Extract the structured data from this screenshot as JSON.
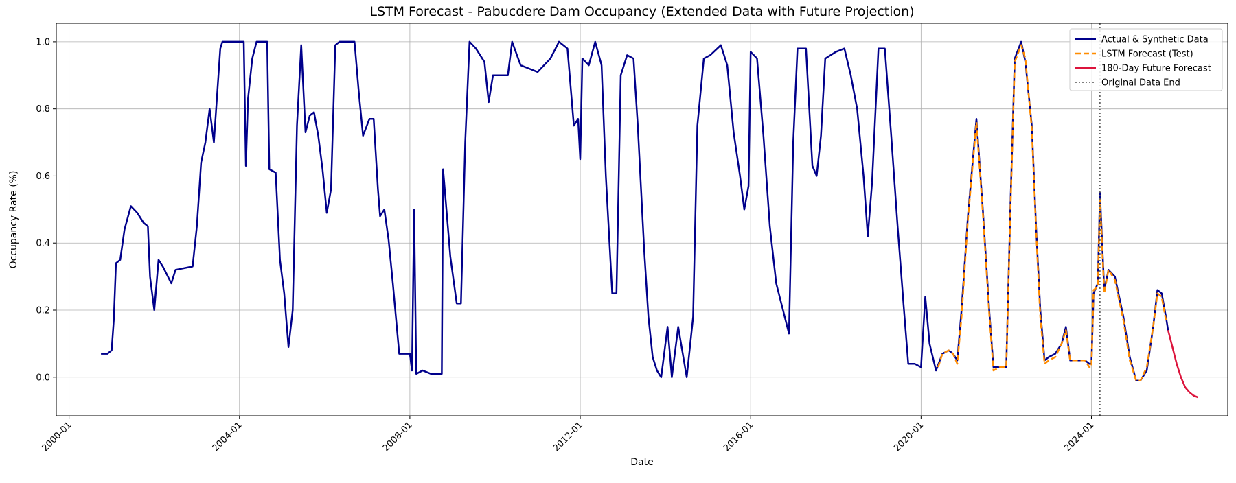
{
  "chart_data": {
    "type": "line",
    "title": "LSTM Forecast - Pabucdere Dam Occupancy (Extended Data with Future Projection)",
    "xlabel": "Date",
    "ylabel": "Occupancy Rate (%)",
    "x_ticks": [
      "2000-01",
      "2004-01",
      "2008-01",
      "2012-01",
      "2016-01",
      "2020-01",
      "2024-01"
    ],
    "y_ticks": [
      "0.0",
      "0.2",
      "0.4",
      "0.6",
      "0.8",
      "1.0"
    ],
    "xlim": [
      1999.7,
      2027.2
    ],
    "ylim": [
      -0.115,
      1.055
    ],
    "grid": true,
    "legend_position": "top-right",
    "series": [
      {
        "name": "Actual & Synthetic Data",
        "color": "#00008b",
        "style": "solid",
        "points": [
          [
            2000.75,
            0.07
          ],
          [
            2000.9,
            0.07
          ],
          [
            2001.0,
            0.08
          ],
          [
            2001.05,
            0.17
          ],
          [
            2001.1,
            0.34
          ],
          [
            2001.2,
            0.35
          ],
          [
            2001.3,
            0.44
          ],
          [
            2001.45,
            0.51
          ],
          [
            2001.6,
            0.49
          ],
          [
            2001.75,
            0.46
          ],
          [
            2001.85,
            0.45
          ],
          [
            2001.9,
            0.3
          ],
          [
            2002.0,
            0.2
          ],
          [
            2002.1,
            0.35
          ],
          [
            2002.2,
            0.33
          ],
          [
            2002.4,
            0.28
          ],
          [
            2002.5,
            0.32
          ],
          [
            2002.9,
            0.33
          ],
          [
            2003.0,
            0.45
          ],
          [
            2003.1,
            0.64
          ],
          [
            2003.2,
            0.7
          ],
          [
            2003.3,
            0.8
          ],
          [
            2003.4,
            0.7
          ],
          [
            2003.55,
            0.98
          ],
          [
            2003.6,
            1.0
          ],
          [
            2004.0,
            1.0
          ],
          [
            2004.1,
            1.0
          ],
          [
            2004.15,
            0.63
          ],
          [
            2004.2,
            0.83
          ],
          [
            2004.3,
            0.95
          ],
          [
            2004.4,
            1.0
          ],
          [
            2004.65,
            1.0
          ],
          [
            2004.7,
            0.62
          ],
          [
            2004.85,
            0.61
          ],
          [
            2004.95,
            0.35
          ],
          [
            2005.05,
            0.25
          ],
          [
            2005.15,
            0.09
          ],
          [
            2005.25,
            0.2
          ],
          [
            2005.35,
            0.75
          ],
          [
            2005.45,
            0.99
          ],
          [
            2005.55,
            0.73
          ],
          [
            2005.65,
            0.78
          ],
          [
            2005.75,
            0.79
          ],
          [
            2005.85,
            0.72
          ],
          [
            2005.95,
            0.62
          ],
          [
            2006.05,
            0.49
          ],
          [
            2006.15,
            0.56
          ],
          [
            2006.25,
            0.99
          ],
          [
            2006.35,
            1.0
          ],
          [
            2006.7,
            1.0
          ],
          [
            2006.8,
            0.85
          ],
          [
            2006.9,
            0.72
          ],
          [
            2007.05,
            0.77
          ],
          [
            2007.15,
            0.77
          ],
          [
            2007.25,
            0.56
          ],
          [
            2007.3,
            0.48
          ],
          [
            2007.4,
            0.5
          ],
          [
            2007.5,
            0.41
          ],
          [
            2007.6,
            0.28
          ],
          [
            2007.75,
            0.07
          ],
          [
            2008.0,
            0.07
          ],
          [
            2008.05,
            0.02
          ],
          [
            2008.1,
            0.5
          ],
          [
            2008.15,
            0.01
          ],
          [
            2008.3,
            0.02
          ],
          [
            2008.5,
            0.01
          ],
          [
            2008.75,
            0.01
          ],
          [
            2008.78,
            0.62
          ],
          [
            2008.95,
            0.36
          ],
          [
            2009.1,
            0.22
          ],
          [
            2009.2,
            0.22
          ],
          [
            2009.3,
            0.7
          ],
          [
            2009.4,
            1.0
          ],
          [
            2009.55,
            0.98
          ],
          [
            2009.75,
            0.94
          ],
          [
            2009.85,
            0.82
          ],
          [
            2009.95,
            0.9
          ],
          [
            2010.3,
            0.9
          ],
          [
            2010.4,
            1.0
          ],
          [
            2010.6,
            0.93
          ],
          [
            2010.8,
            0.92
          ],
          [
            2011.0,
            0.91
          ],
          [
            2011.3,
            0.95
          ],
          [
            2011.5,
            1.0
          ],
          [
            2011.7,
            0.98
          ],
          [
            2011.85,
            0.75
          ],
          [
            2011.95,
            0.77
          ],
          [
            2012.0,
            0.65
          ],
          [
            2012.05,
            0.95
          ],
          [
            2012.2,
            0.93
          ],
          [
            2012.35,
            1.0
          ],
          [
            2012.5,
            0.93
          ],
          [
            2012.6,
            0.6
          ],
          [
            2012.75,
            0.25
          ],
          [
            2012.85,
            0.25
          ],
          [
            2012.95,
            0.9
          ],
          [
            2013.1,
            0.96
          ],
          [
            2013.25,
            0.95
          ],
          [
            2013.35,
            0.75
          ],
          [
            2013.5,
            0.38
          ],
          [
            2013.6,
            0.18
          ],
          [
            2013.7,
            0.06
          ],
          [
            2013.8,
            0.02
          ],
          [
            2013.9,
            0.0
          ],
          [
            2014.05,
            0.15
          ],
          [
            2014.15,
            0.0
          ],
          [
            2014.3,
            0.15
          ],
          [
            2014.5,
            0.0
          ],
          [
            2014.65,
            0.18
          ],
          [
            2014.75,
            0.75
          ],
          [
            2014.9,
            0.95
          ],
          [
            2015.05,
            0.96
          ],
          [
            2015.3,
            0.99
          ],
          [
            2015.45,
            0.93
          ],
          [
            2015.6,
            0.73
          ],
          [
            2015.75,
            0.6
          ],
          [
            2015.85,
            0.5
          ],
          [
            2015.95,
            0.57
          ],
          [
            2016.0,
            0.97
          ],
          [
            2016.15,
            0.95
          ],
          [
            2016.3,
            0.72
          ],
          [
            2016.45,
            0.45
          ],
          [
            2016.6,
            0.28
          ],
          [
            2016.8,
            0.18
          ],
          [
            2016.9,
            0.13
          ],
          [
            2017.0,
            0.7
          ],
          [
            2017.1,
            0.98
          ],
          [
            2017.3,
            0.98
          ],
          [
            2017.45,
            0.63
          ],
          [
            2017.55,
            0.6
          ],
          [
            2017.65,
            0.72
          ],
          [
            2017.75,
            0.95
          ],
          [
            2018.0,
            0.97
          ],
          [
            2018.2,
            0.98
          ],
          [
            2018.35,
            0.9
          ],
          [
            2018.5,
            0.8
          ],
          [
            2018.65,
            0.6
          ],
          [
            2018.75,
            0.42
          ],
          [
            2018.85,
            0.58
          ],
          [
            2019.0,
            0.98
          ],
          [
            2019.15,
            0.98
          ],
          [
            2019.3,
            0.72
          ],
          [
            2019.45,
            0.45
          ],
          [
            2019.6,
            0.2
          ],
          [
            2019.7,
            0.04
          ],
          [
            2019.85,
            0.04
          ],
          [
            2020.0,
            0.03
          ],
          [
            2020.1,
            0.24
          ],
          [
            2020.2,
            0.1
          ],
          [
            2020.35,
            0.02
          ],
          [
            2020.5,
            0.07
          ],
          [
            2020.65,
            0.08
          ],
          [
            2020.75,
            0.07
          ],
          [
            2020.85,
            0.05
          ],
          [
            2020.95,
            0.2
          ],
          [
            2021.1,
            0.48
          ],
          [
            2021.3,
            0.77
          ],
          [
            2021.45,
            0.5
          ],
          [
            2021.6,
            0.2
          ],
          [
            2021.7,
            0.03
          ],
          [
            2021.85,
            0.03
          ],
          [
            2022.0,
            0.03
          ],
          [
            2022.1,
            0.52
          ],
          [
            2022.2,
            0.95
          ],
          [
            2022.35,
            1.0
          ],
          [
            2022.45,
            0.94
          ],
          [
            2022.6,
            0.75
          ],
          [
            2022.7,
            0.45
          ],
          [
            2022.8,
            0.2
          ],
          [
            2022.9,
            0.05
          ],
          [
            2023.0,
            0.06
          ],
          [
            2023.15,
            0.07
          ],
          [
            2023.3,
            0.1
          ],
          [
            2023.4,
            0.15
          ],
          [
            2023.5,
            0.05
          ],
          [
            2023.7,
            0.05
          ],
          [
            2023.85,
            0.05
          ],
          [
            2023.95,
            0.04
          ],
          [
            2024.0,
            0.04
          ],
          [
            2024.05,
            0.25
          ],
          [
            2024.15,
            0.28
          ],
          [
            2024.2,
            0.55
          ],
          [
            2024.3,
            0.26
          ],
          [
            2024.4,
            0.32
          ],
          [
            2024.55,
            0.3
          ],
          [
            2024.75,
            0.18
          ],
          [
            2024.9,
            0.06
          ],
          [
            2025.05,
            -0.01
          ],
          [
            2025.15,
            -0.01
          ],
          [
            2025.3,
            0.02
          ],
          [
            2025.45,
            0.15
          ],
          [
            2025.55,
            0.26
          ],
          [
            2025.65,
            0.25
          ],
          [
            2025.75,
            0.18
          ],
          [
            2025.8,
            0.14
          ]
        ]
      },
      {
        "name": "LSTM Forecast (Test)",
        "color": "#ff8c00",
        "style": "dashed",
        "points": [
          [
            2020.4,
            0.03
          ],
          [
            2020.5,
            0.07
          ],
          [
            2020.65,
            0.08
          ],
          [
            2020.75,
            0.07
          ],
          [
            2020.85,
            0.04
          ],
          [
            2020.95,
            0.18
          ],
          [
            2021.1,
            0.47
          ],
          [
            2021.3,
            0.76
          ],
          [
            2021.45,
            0.49
          ],
          [
            2021.6,
            0.19
          ],
          [
            2021.7,
            0.02
          ],
          [
            2021.85,
            0.03
          ],
          [
            2022.0,
            0.03
          ],
          [
            2022.1,
            0.5
          ],
          [
            2022.2,
            0.94
          ],
          [
            2022.35,
            0.99
          ],
          [
            2022.45,
            0.95
          ],
          [
            2022.6,
            0.74
          ],
          [
            2022.7,
            0.44
          ],
          [
            2022.8,
            0.18
          ],
          [
            2022.9,
            0.04
          ],
          [
            2023.0,
            0.05
          ],
          [
            2023.15,
            0.06
          ],
          [
            2023.3,
            0.1
          ],
          [
            2023.4,
            0.14
          ],
          [
            2023.5,
            0.05
          ],
          [
            2023.7,
            0.05
          ],
          [
            2023.85,
            0.05
          ],
          [
            2023.95,
            0.03
          ],
          [
            2024.0,
            0.03
          ],
          [
            2024.05,
            0.26
          ],
          [
            2024.15,
            0.27
          ],
          [
            2024.2,
            0.53
          ],
          [
            2024.3,
            0.25
          ],
          [
            2024.4,
            0.32
          ],
          [
            2024.55,
            0.29
          ],
          [
            2024.75,
            0.17
          ],
          [
            2024.9,
            0.05
          ],
          [
            2025.05,
            -0.01
          ],
          [
            2025.15,
            -0.01
          ],
          [
            2025.3,
            0.03
          ],
          [
            2025.45,
            0.15
          ],
          [
            2025.55,
            0.25
          ],
          [
            2025.65,
            0.24
          ],
          [
            2025.75,
            0.17
          ]
        ]
      },
      {
        "name": "180-Day Future Forecast",
        "color": "#dc143c",
        "style": "solid",
        "points": [
          [
            2025.8,
            0.14
          ],
          [
            2025.9,
            0.09
          ],
          [
            2026.0,
            0.04
          ],
          [
            2026.1,
            0.0
          ],
          [
            2026.2,
            -0.03
          ],
          [
            2026.3,
            -0.045
          ],
          [
            2026.4,
            -0.055
          ],
          [
            2026.5,
            -0.06
          ]
        ]
      }
    ],
    "vline": {
      "name": "Original Data End",
      "x": 2024.2,
      "color": "#555555",
      "style": "dotted"
    }
  }
}
